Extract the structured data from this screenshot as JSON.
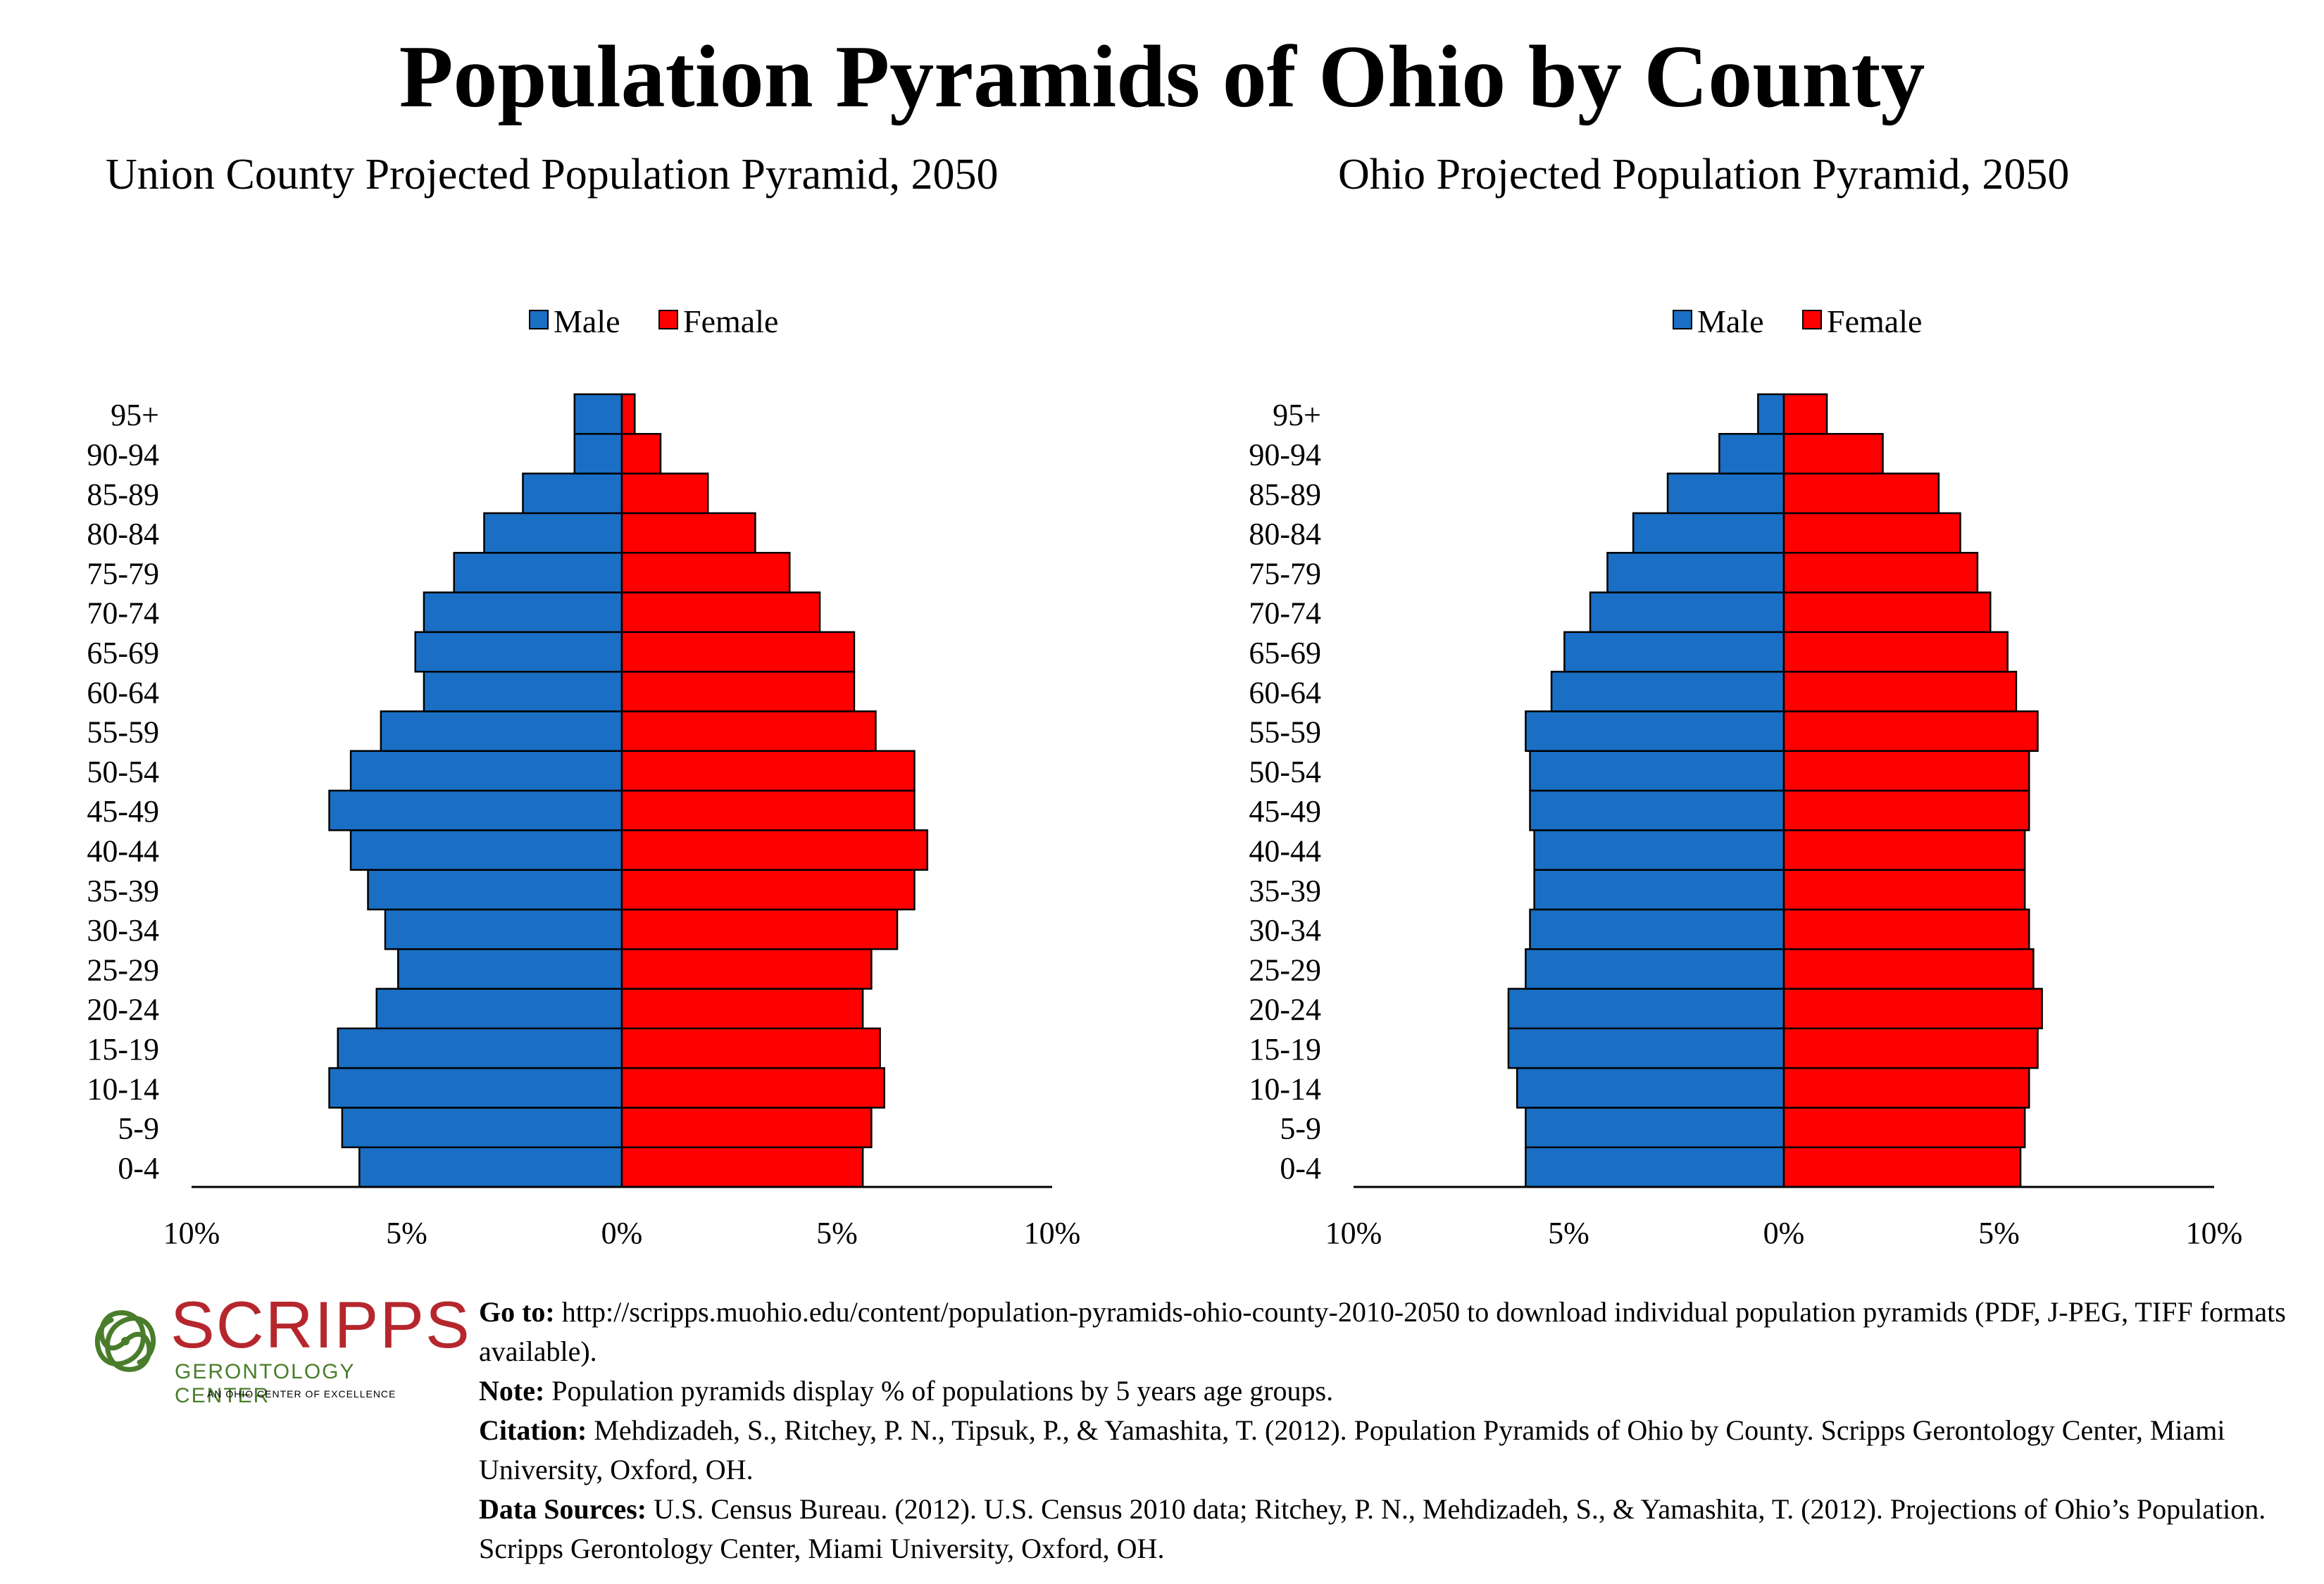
{
  "page": {
    "title": "Population Pyramids of Ohio by County"
  },
  "colors": {
    "male": "#1a6fc4",
    "female": "#ff0000",
    "logo_red": "#b5272d",
    "logo_green": "#4a7d2b"
  },
  "logo": {
    "name": "SCRIPPS",
    "subtitle": "GERONTOLOGY CENTER",
    "tagline": "AN OHIO CENTER OF EXCELLENCE"
  },
  "footer": {
    "goto_label": "Go to:",
    "goto_text": "http://scripps.muohio.edu/content/population-pyramids-ohio-county-2010-2050 to download individual population pyramids (PDF, J-PEG, TIFF formats available).",
    "note_label": "Note:",
    "note_text": "Population pyramids display % of populations by 5 years age groups.",
    "citation_label": "Citation:",
    "citation_text": "Mehdizadeh, S., Ritchey, P. N., Tipsuk, P., & Yamashita, T. (2012). Population Pyramids of Ohio by County. Scripps Gerontology Center, Miami University, Oxford, OH.",
    "sources_label": "Data Sources:",
    "sources_text": "U.S. Census Bureau. (2012). U.S. Census 2010 data; Ritchey, P. N., Mehdizadeh, S., & Yamashita, T. (2012). Projections of Ohio’s Population. Scripps Gerontology Center, Miami University, Oxford, OH."
  },
  "chart_data": [
    {
      "type": "bar",
      "orientation": "horizontal-pyramid",
      "title": "Union County Projected Population Pyramid, 2050",
      "categories": [
        "0-4",
        "5-9",
        "10-14",
        "15-19",
        "20-24",
        "25-29",
        "30-34",
        "35-39",
        "40-44",
        "45-49",
        "50-54",
        "55-59",
        "60-64",
        "65-69",
        "70-74",
        "75-79",
        "80-84",
        "85-89",
        "90-94",
        "95+"
      ],
      "series": [
        {
          "name": "Male",
          "values": [
            6.1,
            6.5,
            6.8,
            6.6,
            5.7,
            5.2,
            5.5,
            5.9,
            6.3,
            6.8,
            6.3,
            5.6,
            4.6,
            4.8,
            4.6,
            3.9,
            3.2,
            2.3,
            1.1,
            1.1
          ]
        },
        {
          "name": "Female",
          "values": [
            5.6,
            5.8,
            6.1,
            6.0,
            5.6,
            5.8,
            6.4,
            6.8,
            7.1,
            6.8,
            6.8,
            5.9,
            5.4,
            5.4,
            4.6,
            3.9,
            3.1,
            2.0,
            0.9,
            0.3
          ]
        }
      ],
      "xlim": [
        -10,
        10
      ],
      "xticks": [
        "10%",
        "5%",
        "0%",
        "5%",
        "10%"
      ],
      "legend": "top-center"
    },
    {
      "type": "bar",
      "orientation": "horizontal-pyramid",
      "title": "Ohio Projected Population Pyramid, 2050",
      "categories": [
        "0-4",
        "5-9",
        "10-14",
        "15-19",
        "20-24",
        "25-29",
        "30-34",
        "35-39",
        "40-44",
        "45-49",
        "50-54",
        "55-59",
        "60-64",
        "65-69",
        "70-74",
        "75-79",
        "80-84",
        "85-89",
        "90-94",
        "95+"
      ],
      "series": [
        {
          "name": "Male",
          "values": [
            6.0,
            6.0,
            6.2,
            6.4,
            6.4,
            6.0,
            5.9,
            5.8,
            5.8,
            5.9,
            5.9,
            6.0,
            5.4,
            5.1,
            4.5,
            4.1,
            3.5,
            2.7,
            1.5,
            0.6
          ]
        },
        {
          "name": "Female",
          "values": [
            5.5,
            5.6,
            5.7,
            5.9,
            6.0,
            5.8,
            5.7,
            5.6,
            5.6,
            5.7,
            5.7,
            5.9,
            5.4,
            5.2,
            4.8,
            4.5,
            4.1,
            3.6,
            2.3,
            1.0
          ]
        }
      ],
      "xlim": [
        -10,
        10
      ],
      "xticks": [
        "10%",
        "5%",
        "0%",
        "5%",
        "10%"
      ],
      "legend": "top-center"
    }
  ]
}
